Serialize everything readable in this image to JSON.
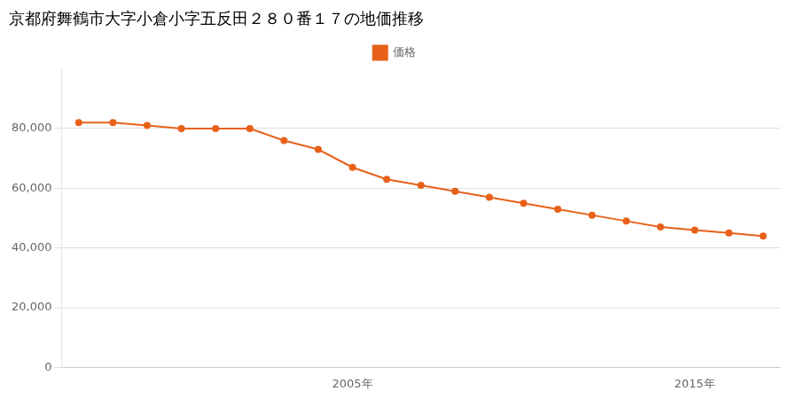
{
  "chart_data": {
    "type": "line",
    "title": "京都府舞鶴市大字小倉小字五反田２８０番１７の地価推移",
    "x": [
      1997,
      1998,
      1999,
      2000,
      2001,
      2002,
      2003,
      2004,
      2005,
      2006,
      2007,
      2008,
      2009,
      2010,
      2011,
      2012,
      2013,
      2014,
      2015,
      2016,
      2017
    ],
    "series": [
      {
        "name": "価格",
        "color": "#e8611a",
        "marker": "circle",
        "values": [
          82000,
          82000,
          81000,
          80000,
          80000,
          80000,
          76000,
          73000,
          67000,
          63000,
          61000,
          59000,
          57000,
          55000,
          53000,
          51000,
          49000,
          47000,
          46000,
          45000,
          44000
        ]
      }
    ],
    "xlim": [
      1996.5,
      2017.5
    ],
    "xticks": [
      {
        "value": 2005,
        "label": "2005年"
      },
      {
        "value": 2015,
        "label": "2015年"
      }
    ],
    "ylim": [
      0,
      100000
    ],
    "yticks": [
      0,
      {
        "value": 20000,
        "label": "20,000"
      },
      {
        "value": 40000,
        "label": "40,000"
      },
      {
        "value": 60000,
        "label": "60,000"
      },
      {
        "value": 80000,
        "label": "80,000"
      }
    ],
    "grid": true,
    "legend": "top"
  }
}
